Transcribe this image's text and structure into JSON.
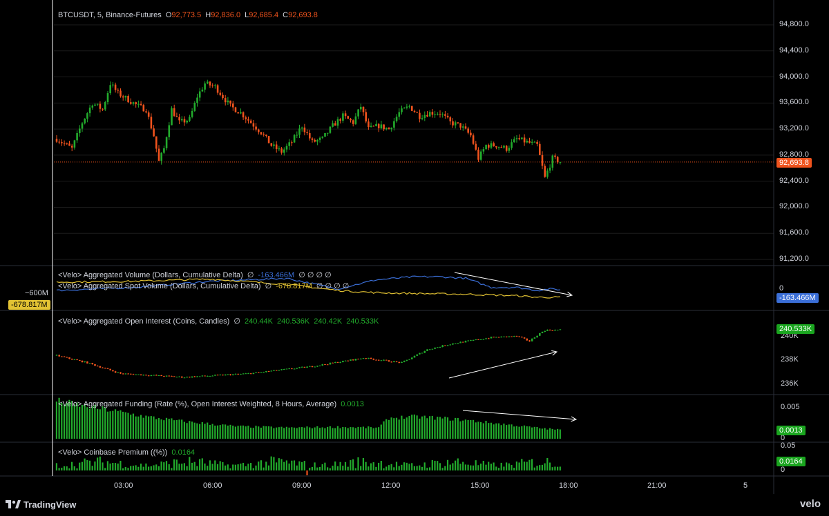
{
  "header": {
    "symbol": "BTCUSDT, 5, Binance-Futures",
    "o_label": "O",
    "o_value": "92,773.5",
    "h_label": "H",
    "h_value": "92,836.0",
    "l_label": "L",
    "l_value": "92,685.4",
    "c_label": "C",
    "c_value": "92,693.8"
  },
  "colors": {
    "up": "#22ab2c",
    "down": "#f0531d",
    "blue_line": "#3b6fd8",
    "yellow_line": "#e2c233",
    "price_tag": "#f0531d",
    "green_tag": "#1aa51f",
    "grid": "#1c1c1c",
    "axis_text": "#d1d4dc"
  },
  "price_axis": {
    "ticks": [
      "94,800.0",
      "94,400.0",
      "94,000.0",
      "93,600.0",
      "93,200.0",
      "92,800.0",
      "92,400.0",
      "92,000.0",
      "91,600.0",
      "91,200.0"
    ],
    "last_price_tag": "92,693.8"
  },
  "volume_pane": {
    "legend1": "<Velo> Aggregated Volume (Dollars, Cumulative Delta)",
    "legend1_sym": "∅",
    "legend1_value": "-163.466M",
    "legend1_extra": "∅ ∅ ∅ ∅",
    "legend2": "<Velo> Aggregated Spot Volume (Dollars, Cumulative Delta)",
    "legend2_sym": "∅",
    "legend2_value": "-678.817M",
    "legend2_extra": "∅ ∅ ∅ ∅",
    "left_scale_label": "−600M",
    "left_tag": "-678.817M",
    "right_zero": "0",
    "right_tag": "-163.466M"
  },
  "oi_pane": {
    "legend": "<Velo> Aggregated Open Interest (Coins, Candles)",
    "legend_sym": "∅",
    "values": [
      "240.44K",
      "240.536K",
      "240.42K",
      "240.533K"
    ],
    "ticks": [
      "240K",
      "238K",
      "236K"
    ],
    "tag": "240.533K"
  },
  "funding_pane": {
    "legend": "<Velo> Aggregated Funding (Rate (%), Open Interest Weighted, 8 Hours, Average)",
    "value": "0.0013",
    "ticks": [
      "0.005",
      "0"
    ],
    "tag": "0.0013"
  },
  "premium_pane": {
    "legend": "<Velo> Coinbase Premium ((%))",
    "value": "0.0164",
    "ticks": [
      "0.05",
      "0"
    ],
    "tag": "0.0164"
  },
  "time_axis": {
    "labels": [
      "03:00",
      "06:00",
      "09:00",
      "12:00",
      "15:00",
      "18:00",
      "21:00",
      "5"
    ]
  },
  "footer": {
    "brand": "TradingView",
    "right_brand": "velo"
  },
  "chart_data": {
    "type": "candlestick",
    "timeframe": "5",
    "price_range": [
      91200,
      94800
    ],
    "price_path": [
      [
        0,
        93050
      ],
      [
        6,
        92900
      ],
      [
        10,
        93300
      ],
      [
        14,
        93600
      ],
      [
        18,
        93500
      ],
      [
        21,
        93900
      ],
      [
        24,
        93750
      ],
      [
        28,
        93650
      ],
      [
        32,
        93550
      ],
      [
        35,
        93500
      ],
      [
        38,
        93100
      ],
      [
        40,
        92700
      ],
      [
        42,
        92900
      ],
      [
        45,
        93500
      ],
      [
        48,
        93300
      ],
      [
        52,
        93350
      ],
      [
        55,
        93700
      ],
      [
        58,
        93900
      ],
      [
        62,
        93850
      ],
      [
        65,
        93700
      ],
      [
        68,
        93550
      ],
      [
        72,
        93450
      ],
      [
        76,
        93300
      ],
      [
        80,
        93150
      ],
      [
        84,
        92950
      ],
      [
        88,
        92850
      ],
      [
        92,
        93000
      ],
      [
        96,
        93250
      ],
      [
        100,
        93000
      ],
      [
        104,
        93050
      ],
      [
        108,
        93250
      ],
      [
        112,
        93400
      ],
      [
        116,
        93300
      ],
      [
        119,
        93550
      ],
      [
        122,
        93200
      ],
      [
        126,
        93250
      ],
      [
        130,
        93200
      ],
      [
        134,
        93450
      ],
      [
        138,
        93550
      ],
      [
        142,
        93400
      ],
      [
        146,
        93450
      ],
      [
        150,
        93450
      ],
      [
        154,
        93300
      ],
      [
        158,
        93250
      ],
      [
        162,
        93100
      ],
      [
        165,
        92750
      ],
      [
        168,
        92950
      ],
      [
        172,
        92950
      ],
      [
        176,
        92900
      ],
      [
        180,
        93050
      ],
      [
        184,
        93000
      ],
      [
        188,
        92950
      ],
      [
        191,
        92450
      ],
      [
        194,
        92750
      ],
      [
        197,
        92700
      ]
    ],
    "cumulative_delta_perp_path": [
      [
        0,
        0
      ],
      [
        30,
        0.2
      ],
      [
        60,
        0.6
      ],
      [
        90,
        0.8
      ],
      [
        110,
        0.1
      ],
      [
        125,
        0.7
      ],
      [
        140,
        0.9
      ],
      [
        150,
        0.9
      ],
      [
        160,
        0.8
      ],
      [
        170,
        0.2
      ],
      [
        180,
        0.2
      ],
      [
        188,
        0.0
      ],
      [
        193,
        0.1
      ],
      [
        197,
        0.05
      ]
    ],
    "cumulative_delta_spot_path": [
      [
        0,
        0.55
      ],
      [
        30,
        0.6
      ],
      [
        60,
        0.75
      ],
      [
        90,
        0.4
      ],
      [
        110,
        0.0
      ],
      [
        125,
        -0.15
      ],
      [
        140,
        -0.2
      ],
      [
        160,
        -0.25
      ],
      [
        180,
        -0.35
      ],
      [
        188,
        -0.45
      ],
      [
        197,
        -0.45
      ]
    ],
    "open_interest_range": [
      235500,
      241000
    ],
    "open_interest_path": [
      [
        0,
        238400
      ],
      [
        12,
        237800
      ],
      [
        25,
        236900
      ],
      [
        50,
        236600
      ],
      [
        75,
        236900
      ],
      [
        100,
        237500
      ],
      [
        120,
        238200
      ],
      [
        135,
        237800
      ],
      [
        145,
        238900
      ],
      [
        155,
        239400
      ],
      [
        170,
        239900
      ],
      [
        180,
        240000
      ],
      [
        185,
        239600
      ],
      [
        188,
        240100
      ],
      [
        191,
        240500
      ],
      [
        197,
        240533
      ]
    ],
    "funding_range": [
      0,
      0.006
    ],
    "funding_path": [
      [
        0,
        0.0055
      ],
      [
        10,
        0.0048
      ],
      [
        20,
        0.0042
      ],
      [
        35,
        0.0032
      ],
      [
        50,
        0.0025
      ],
      [
        70,
        0.0018
      ],
      [
        90,
        0.0016
      ],
      [
        110,
        0.0017
      ],
      [
        126,
        0.0016
      ],
      [
        130,
        0.003
      ],
      [
        140,
        0.0032
      ],
      [
        150,
        0.003
      ],
      [
        160,
        0.0027
      ],
      [
        170,
        0.0023
      ],
      [
        180,
        0.0019
      ],
      [
        190,
        0.0015
      ],
      [
        197,
        0.0013
      ]
    ],
    "premium_range": [
      0,
      0.05
    ]
  }
}
